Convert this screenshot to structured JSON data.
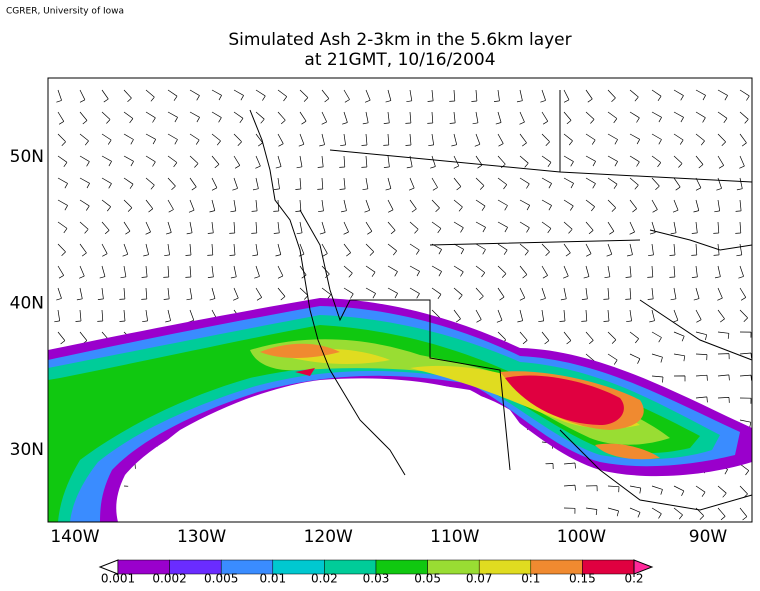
{
  "header": {
    "credit": "CGRER, University of Iowa",
    "title_line1": "Simulated Ash 2-3km in the 5.6km layer",
    "title_line2": "at 21GMT, 10/16/2004"
  },
  "map": {
    "lat_labels": [
      {
        "value": 50,
        "label": "50N"
      },
      {
        "value": 40,
        "label": "40N"
      },
      {
        "value": 30,
        "label": "30N"
      }
    ],
    "lon_labels": [
      {
        "value": -140,
        "label": "140W"
      },
      {
        "value": -130,
        "label": "130W"
      },
      {
        "value": -120,
        "label": "120W"
      },
      {
        "value": -110,
        "label": "110W"
      },
      {
        "value": -100,
        "label": "100W"
      },
      {
        "value": -90,
        "label": "90W"
      }
    ]
  },
  "colorbar": {
    "ticks": [
      0.001,
      0.002,
      0.005,
      0.01,
      0.02,
      0.03,
      0.05,
      0.07,
      0.1,
      0.15,
      0.2
    ],
    "colors": [
      "#9a00cc",
      "#6a2cff",
      "#3a8cff",
      "#00c8d0",
      "#00cc99",
      "#10c810",
      "#99dd33",
      "#e0dc20",
      "#f08a30",
      "#e00040"
    ],
    "under_color": "#ffffff",
    "over_color": "#ff2a9a"
  }
}
